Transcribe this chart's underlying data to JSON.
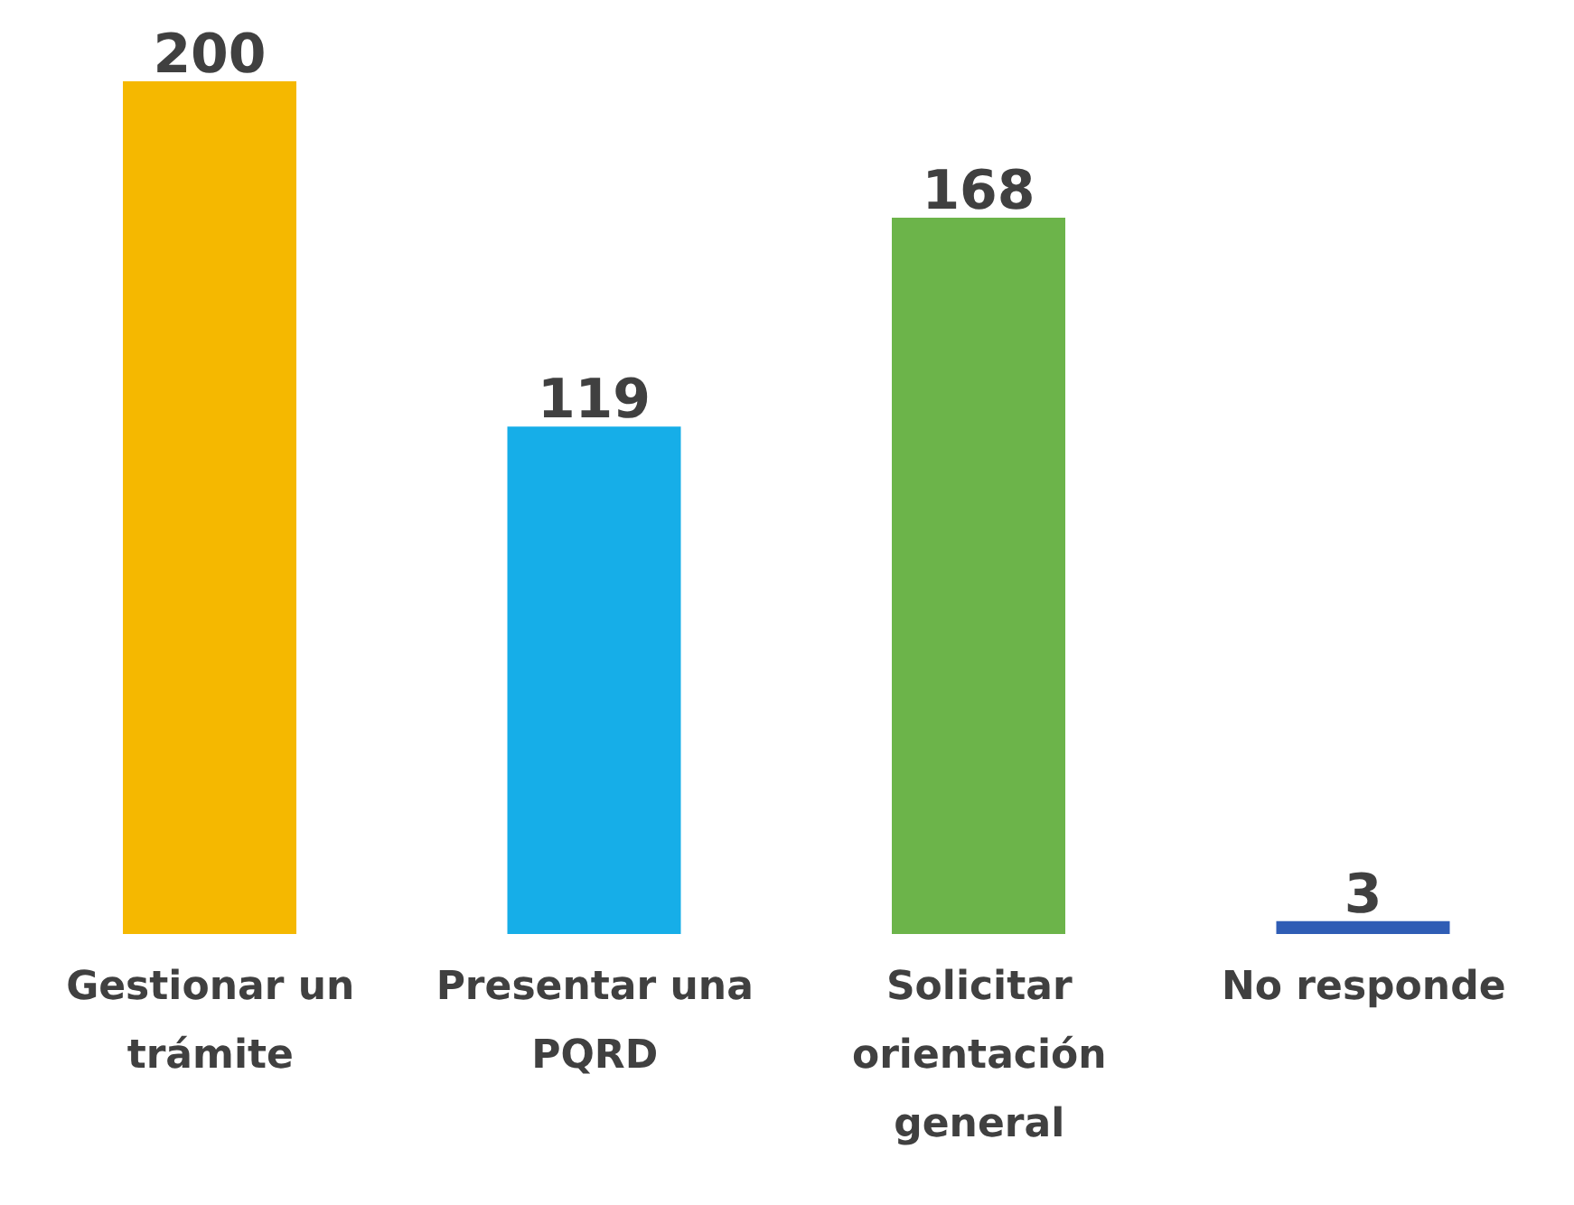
{
  "chart_data": {
    "type": "bar",
    "categories": [
      "Gestionar un trámite",
      "Presentar una PQRD",
      "Solicitar orientación general",
      "No responde"
    ],
    "values": [
      200,
      119,
      168,
      3
    ],
    "colors": [
      "#f5b800",
      "#16aee8",
      "#6cb44a",
      "#2f5db5"
    ],
    "data_labels": true,
    "grid": false,
    "legend": false
  }
}
